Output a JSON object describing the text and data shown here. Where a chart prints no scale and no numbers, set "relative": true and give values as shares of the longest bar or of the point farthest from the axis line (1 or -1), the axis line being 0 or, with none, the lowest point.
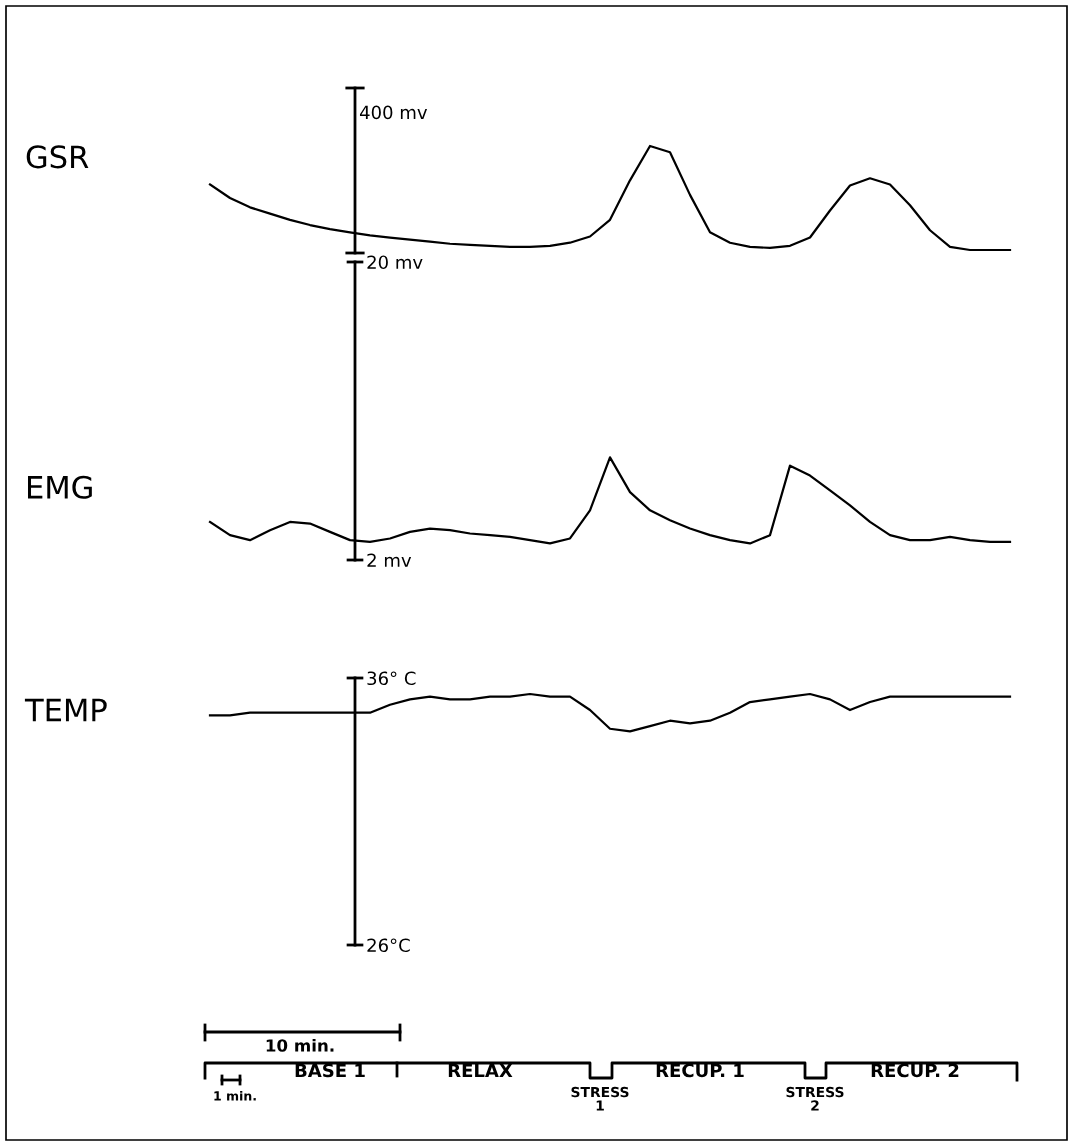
{
  "chart_data": [
    {
      "type": "line",
      "ylabel": "GSR",
      "relative": true,
      "tick_labels": false,
      "color": "#000000",
      "annotations": [
        "400 mv"
      ],
      "categories": [
        null,
        null,
        null,
        null,
        null,
        null,
        null,
        null,
        null,
        null,
        null,
        null,
        null,
        null,
        null,
        null,
        null,
        null,
        null,
        null,
        null,
        null,
        null,
        null,
        null,
        null,
        null,
        null,
        null,
        null,
        null,
        null,
        null,
        null,
        null,
        null,
        null,
        null,
        null,
        null,
        null
      ],
      "values": [
        0.63,
        0.5,
        0.41,
        0.35,
        0.29,
        0.24,
        0.2,
        0.17,
        0.14,
        0.12,
        0.1,
        0.08,
        0.06,
        0.05,
        0.04,
        0.03,
        0.03,
        0.04,
        0.07,
        0.13,
        0.29,
        0.67,
        1,
        0.94,
        0.53,
        0.17,
        0.07,
        0.03,
        0.02,
        0.04,
        0.12,
        0.38,
        0.62,
        0.69,
        0.63,
        0.43,
        0.19,
        0.03,
        0,
        0,
        0
      ]
    },
    {
      "type": "line",
      "ylabel": "EMG",
      "tick_labels": "y",
      "color": "#000000",
      "ylim": [
        2,
        20
      ],
      "yticks": [
        {
          "value": 20,
          "label": "20 mv"
        },
        {
          "value": 2,
          "label": "2 mv"
        }
      ],
      "categories": [
        null,
        null,
        null,
        null,
        null,
        null,
        null,
        null,
        null,
        null,
        null,
        null,
        null,
        null,
        null,
        null,
        null,
        null,
        null,
        null,
        null,
        null,
        null,
        null,
        null,
        null,
        null,
        null,
        null,
        null,
        null,
        null,
        null,
        null,
        null,
        null,
        null,
        null,
        null,
        null,
        null
      ],
      "values": [
        4.3,
        3.5,
        3.2,
        3.8,
        4.3,
        4.2,
        3.7,
        3.2,
        3.1,
        3.3,
        3.7,
        3.9,
        3.8,
        3.6,
        3.5,
        3.4,
        3.2,
        3.0,
        3.3,
        5.0,
        8.2,
        6.1,
        5.0,
        4.4,
        3.9,
        3.5,
        3.2,
        3.0,
        3.5,
        7.7,
        7.1,
        6.2,
        5.3,
        4.3,
        3.5,
        3.2,
        3.2,
        3.4,
        3.2,
        3.1,
        3.1
      ]
    },
    {
      "type": "line",
      "ylabel": "TEMP",
      "tick_labels": "y",
      "color": "#000000",
      "ylim": [
        26,
        36
      ],
      "yticks": [
        {
          "value": 36,
          "label": "36° C"
        },
        {
          "value": 26,
          "label": "26°C"
        }
      ],
      "categories": [
        null,
        null,
        null,
        null,
        null,
        null,
        null,
        null,
        null,
        null,
        null,
        null,
        null,
        null,
        null,
        null,
        null,
        null,
        null,
        null,
        null,
        null,
        null,
        null,
        null,
        null,
        null,
        null,
        null,
        null,
        null,
        null,
        null,
        null,
        null,
        null,
        null,
        null,
        null,
        null,
        null
      ],
      "values": [
        34.6,
        34.6,
        34.7,
        34.7,
        34.7,
        34.7,
        34.7,
        34.7,
        34.7,
        35.0,
        35.2,
        35.3,
        35.2,
        35.2,
        35.3,
        35.3,
        35.4,
        35.3,
        35.3,
        34.8,
        34.1,
        34.0,
        34.2,
        34.4,
        34.3,
        34.4,
        34.7,
        35.1,
        35.2,
        35.3,
        35.4,
        35.2,
        34.8,
        35.1,
        35.3,
        35.3,
        35.3,
        35.3,
        35.3,
        35.3,
        35.3
      ]
    },
    {
      "type": "other",
      "annotations": [
        "10 min.",
        "1 min.",
        "BASE 1",
        "RELAX",
        "STRESS\n1",
        "RECUP. 1",
        "STRESS\n2",
        "RECUP. 2"
      ]
    }
  ]
}
